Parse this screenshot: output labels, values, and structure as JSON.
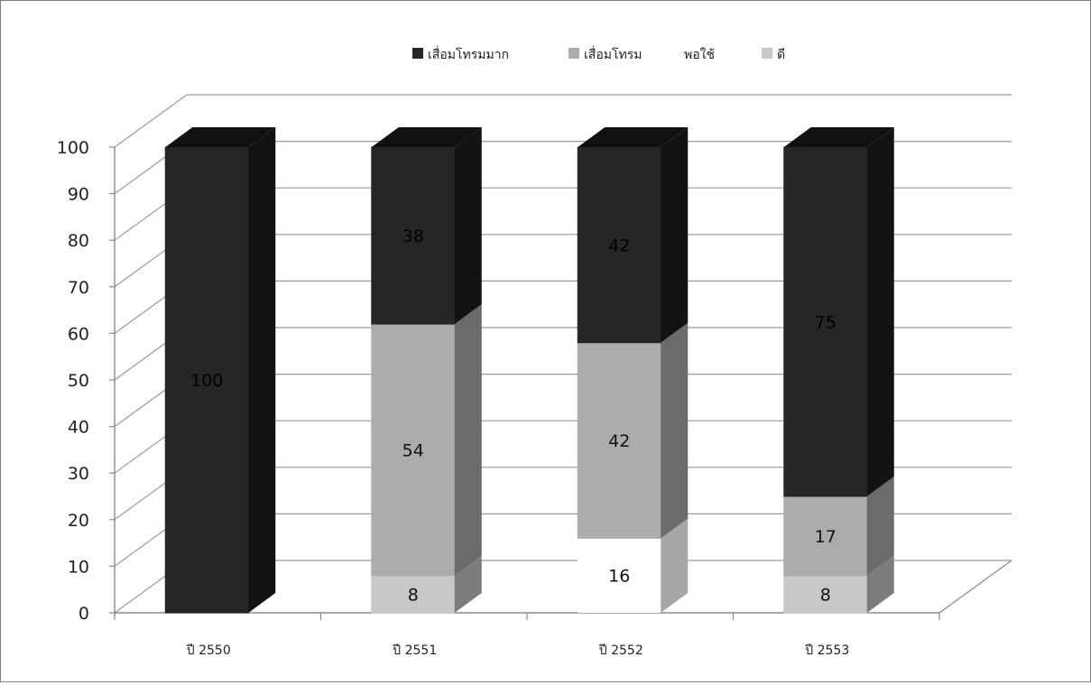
{
  "chart_data": {
    "type": "bar",
    "stacked": true,
    "three_d": true,
    "title": "",
    "xlabel": "",
    "ylabel": "",
    "ylim": [
      0,
      100
    ],
    "yticks": [
      "0",
      "10",
      "20",
      "30",
      "40",
      "50",
      "60",
      "70",
      "80",
      "90",
      "100"
    ],
    "grid": true,
    "legend_position": "top",
    "categories": [
      "ปี 2550",
      "ปี 2551",
      "ปี 2552",
      "ปี 2553"
    ],
    "series": [
      {
        "name": "ดี",
        "color": "#c8c8c8",
        "values": [
          0,
          8,
          0,
          8
        ]
      },
      {
        "name": "พอใช้",
        "color": "#ffffff",
        "values": [
          0,
          0,
          16,
          0
        ]
      },
      {
        "name": "เสื่อมโทรม",
        "color": "#acacac",
        "values": [
          0,
          54,
          42,
          17
        ]
      },
      {
        "name": "เสื่อมโทรมมาก",
        "color": "#262626",
        "values": [
          100,
          38,
          42,
          75
        ]
      }
    ],
    "legend_order": [
      "เสื่อมโทรมมาก",
      "เสื่อมโทรม",
      "พอใช้",
      "ดี"
    ]
  }
}
